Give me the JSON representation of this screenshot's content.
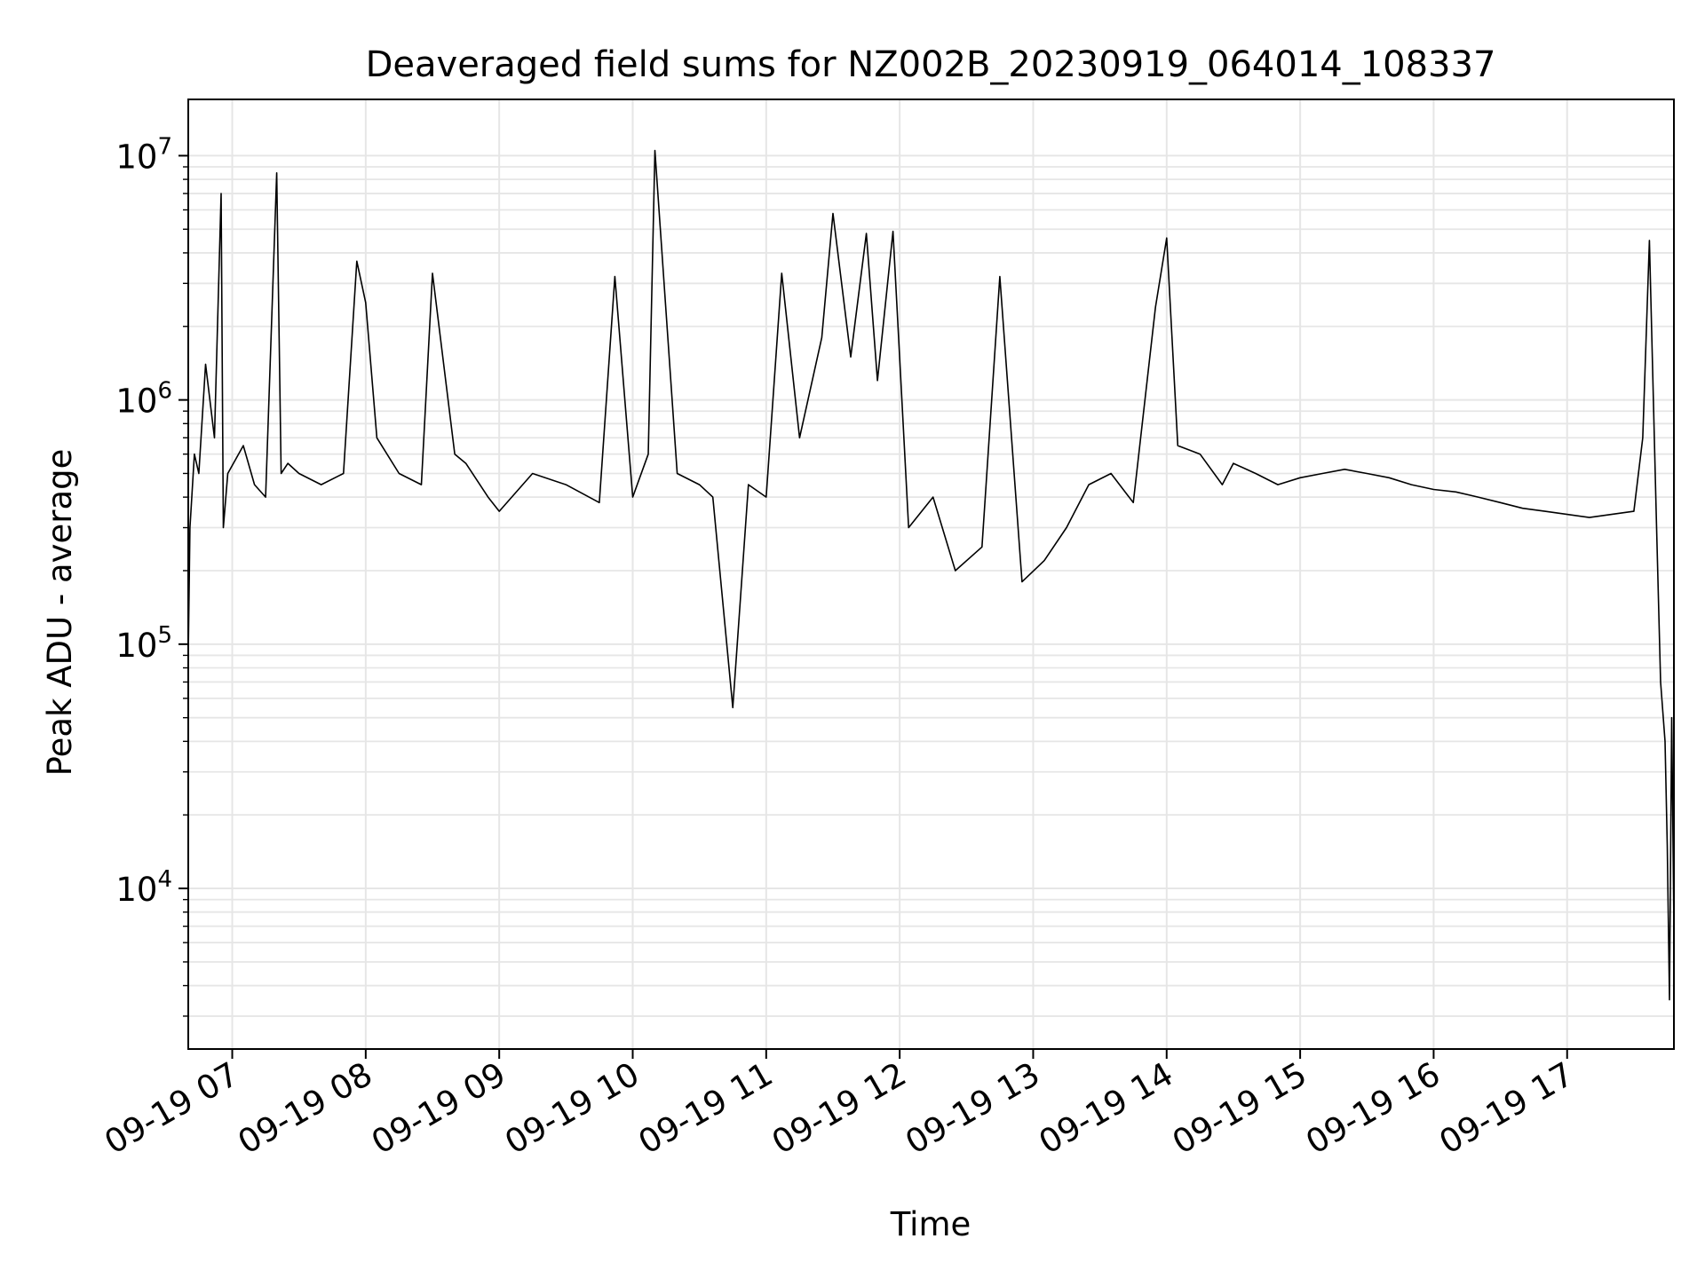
{
  "chart_data": {
    "type": "line",
    "title": "Deaveraged field sums for NZ002B_20230919_064014_108337",
    "xlabel": "Time",
    "ylabel": "Peak ADU - average",
    "x_range": [
      "2023-09-19T06:40:14",
      "2023-09-19T17:48:00"
    ],
    "x_ticks": [
      {
        "time": "2023-09-19T07:00",
        "label": "09-19 07"
      },
      {
        "time": "2023-09-19T08:00",
        "label": "09-19 08"
      },
      {
        "time": "2023-09-19T09:00",
        "label": "09-19 09"
      },
      {
        "time": "2023-09-19T10:00",
        "label": "09-19 10"
      },
      {
        "time": "2023-09-19T11:00",
        "label": "09-19 11"
      },
      {
        "time": "2023-09-19T12:00",
        "label": "09-19 12"
      },
      {
        "time": "2023-09-19T13:00",
        "label": "09-19 13"
      },
      {
        "time": "2023-09-19T14:00",
        "label": "09-19 14"
      },
      {
        "time": "2023-09-19T15:00",
        "label": "09-19 15"
      },
      {
        "time": "2023-09-19T16:00",
        "label": "09-19 16"
      },
      {
        "time": "2023-09-19T17:00",
        "label": "09-19 17"
      }
    ],
    "y_scale": "log",
    "ylim": [
      2200,
      17000000
    ],
    "y_ticks": [
      {
        "value": 10000,
        "base": "10",
        "exp": "4"
      },
      {
        "value": 100000,
        "base": "10",
        "exp": "5"
      },
      {
        "value": 1000000,
        "base": "10",
        "exp": "6"
      },
      {
        "value": 10000000,
        "base": "10",
        "exp": "7"
      }
    ],
    "grid": true,
    "line_color": "#000000",
    "grid_color": "#e6e6e6",
    "series": [
      {
        "x": [
          "2023-09-19T06:40:14",
          "2023-09-19T06:41",
          "2023-09-19T06:43",
          "2023-09-19T06:45",
          "2023-09-19T06:48",
          "2023-09-19T06:52",
          "2023-09-19T06:55",
          "2023-09-19T06:56",
          "2023-09-19T06:58",
          "2023-09-19T07:05",
          "2023-09-19T07:10",
          "2023-09-19T07:15",
          "2023-09-19T07:20",
          "2023-09-19T07:22",
          "2023-09-19T07:25",
          "2023-09-19T07:30",
          "2023-09-19T07:40",
          "2023-09-19T07:50",
          "2023-09-19T07:56",
          "2023-09-19T08:00",
          "2023-09-19T08:05",
          "2023-09-19T08:15",
          "2023-09-19T08:25",
          "2023-09-19T08:30",
          "2023-09-19T08:40",
          "2023-09-19T08:45",
          "2023-09-19T08:55",
          "2023-09-19T09:00",
          "2023-09-19T09:15",
          "2023-09-19T09:30",
          "2023-09-19T09:45",
          "2023-09-19T09:52",
          "2023-09-19T10:00",
          "2023-09-19T10:07",
          "2023-09-19T10:10",
          "2023-09-19T10:20",
          "2023-09-19T10:30",
          "2023-09-19T10:36",
          "2023-09-19T10:45",
          "2023-09-19T10:52",
          "2023-09-19T11:00",
          "2023-09-19T11:07",
          "2023-09-19T11:15",
          "2023-09-19T11:25",
          "2023-09-19T11:30",
          "2023-09-19T11:38",
          "2023-09-19T11:45",
          "2023-09-19T11:50",
          "2023-09-19T11:57",
          "2023-09-19T12:04",
          "2023-09-19T12:15",
          "2023-09-19T12:25",
          "2023-09-19T12:37",
          "2023-09-19T12:45",
          "2023-09-19T12:55",
          "2023-09-19T13:05",
          "2023-09-19T13:15",
          "2023-09-19T13:25",
          "2023-09-19T13:35",
          "2023-09-19T13:45",
          "2023-09-19T13:55",
          "2023-09-19T14:00",
          "2023-09-19T14:05",
          "2023-09-19T14:15",
          "2023-09-19T14:25",
          "2023-09-19T14:30",
          "2023-09-19T14:40",
          "2023-09-19T14:50",
          "2023-09-19T15:00",
          "2023-09-19T15:10",
          "2023-09-19T15:20",
          "2023-09-19T15:30",
          "2023-09-19T15:40",
          "2023-09-19T15:50",
          "2023-09-19T16:00",
          "2023-09-19T16:10",
          "2023-09-19T16:20",
          "2023-09-19T16:30",
          "2023-09-19T16:40",
          "2023-09-19T16:50",
          "2023-09-19T17:00",
          "2023-09-19T17:10",
          "2023-09-19T17:20",
          "2023-09-19T17:30",
          "2023-09-19T17:34",
          "2023-09-19T17:37",
          "2023-09-19T17:40",
          "2023-09-19T17:42",
          "2023-09-19T17:44",
          "2023-09-19T17:45",
          "2023-09-19T17:46",
          "2023-09-19T17:47",
          "2023-09-19T17:48"
        ],
        "y": [
          90000,
          300000,
          600000,
          500000,
          1400000,
          700000,
          7000000,
          300000,
          500000,
          650000,
          450000,
          400000,
          8500000,
          500000,
          550000,
          500000,
          450000,
          500000,
          3700000,
          2500000,
          700000,
          500000,
          450000,
          3300000,
          600000,
          550000,
          400000,
          350000,
          500000,
          450000,
          380000,
          3200000,
          400000,
          600000,
          10500000,
          500000,
          450000,
          400000,
          55000,
          450000,
          400000,
          3300000,
          700000,
          1800000,
          5800000,
          1500000,
          4800000,
          1200000,
          4900000,
          300000,
          400000,
          200000,
          250000,
          3200000,
          180000,
          220000,
          300000,
          450000,
          500000,
          380000,
          2400000,
          4600000,
          650000,
          600000,
          450000,
          550000,
          500000,
          450000,
          480000,
          500000,
          520000,
          500000,
          480000,
          450000,
          430000,
          420000,
          400000,
          380000,
          360000,
          350000,
          340000,
          330000,
          340000,
          350000,
          700000,
          4500000,
          350000,
          70000,
          40000,
          15000,
          3500,
          50000,
          7000
        ]
      }
    ]
  }
}
